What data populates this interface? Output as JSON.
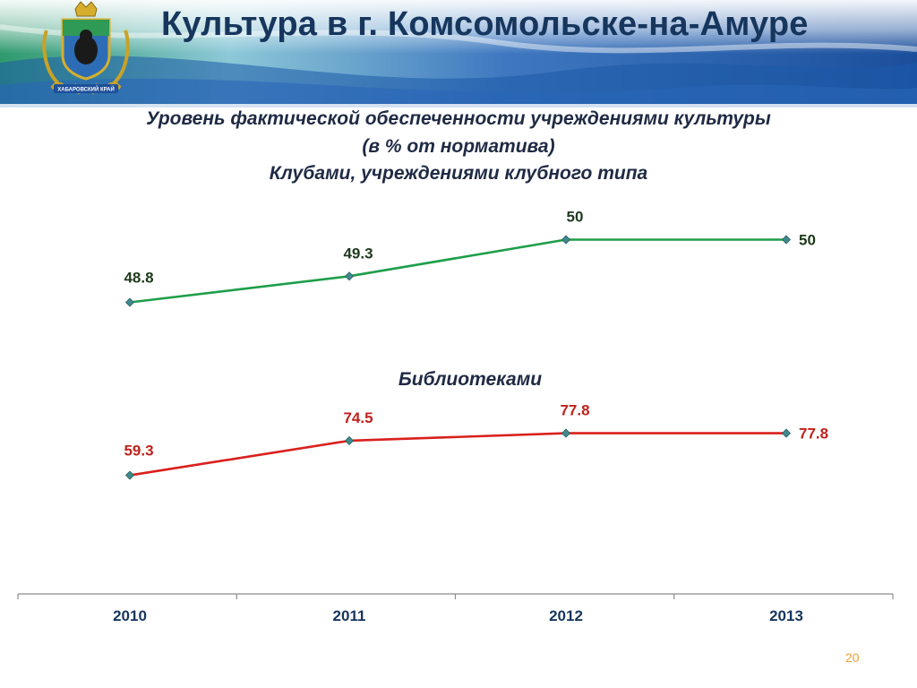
{
  "header": {
    "title": "Культура в г. Комсомольске-на-Амуре",
    "emblem_caption": "ХАБАРОВСКИЙ КРАЙ"
  },
  "subtitle": {
    "line1": "Уровень фактической обеспеченности учреждениями культуры",
    "line2": "(в % от норматива)",
    "line3": "Клубами, учреждениями клубного типа"
  },
  "page_number": "20",
  "colors": {
    "title": "#17365d",
    "clubs_line": "#1e9e4a",
    "clubs_label": "#1d3a1d",
    "libraries_line": "#d9201c",
    "libraries_label": "#c0221c",
    "marker": "#3f8a8c",
    "banner_blue": "#1b4f9c",
    "banner_green": "#2e9a6a"
  },
  "chart_data": [
    {
      "type": "line",
      "title": "Клубами, учреждениями клубного типа",
      "categories": [
        "2010",
        "2011",
        "2012",
        "2013"
      ],
      "series": [
        {
          "values": [
            48.8,
            49.3,
            50,
            50
          ]
        }
      ],
      "data_labels": [
        "48.8",
        "49.3",
        "50",
        "50"
      ],
      "ylim": [
        48.5,
        50.3
      ],
      "grid": false,
      "color": "#1e9e4a"
    },
    {
      "type": "line",
      "title": "Библиотеками",
      "categories": [
        "2010",
        "2011",
        "2012",
        "2013"
      ],
      "series": [
        {
          "values": [
            59.3,
            74.5,
            77.8,
            77.8
          ]
        }
      ],
      "data_labels": [
        "59.3",
        "74.5",
        "77.8",
        "77.8"
      ],
      "ylim": [
        54,
        80
      ],
      "grid": false,
      "color": "#d9201c"
    }
  ]
}
